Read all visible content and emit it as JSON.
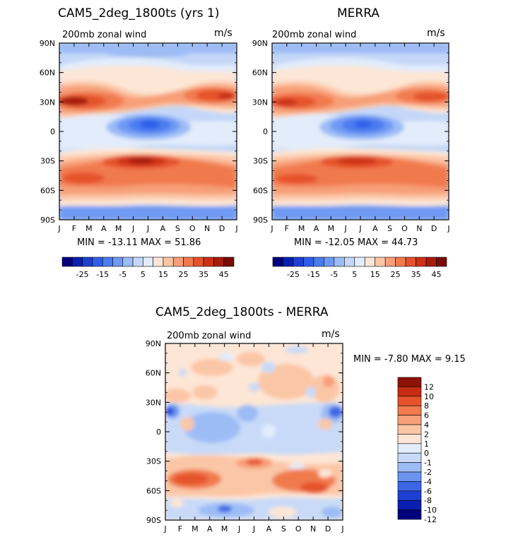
{
  "chart_data": [
    {
      "type": "heatmap",
      "title": "CAM5_2deg_1800ts (yrs 1)",
      "subtitle": "200mb zonal wind",
      "units": "m/s",
      "x_ticks": [
        "J",
        "F",
        "M",
        "A",
        "M",
        "J",
        "J",
        "A",
        "S",
        "O",
        "N",
        "D",
        "J"
      ],
      "y_ticks": [
        "90N",
        "60N",
        "30N",
        "0",
        "30S",
        "60S",
        "90S"
      ],
      "stats": "MIN = -13.11 MAX =  51.86",
      "colorbar_labels": [
        "-25",
        "-15",
        "-5",
        "5",
        "15",
        "25",
        "35",
        "45"
      ],
      "ylim": [
        -90,
        90
      ]
    },
    {
      "type": "heatmap",
      "title": "MERRA",
      "subtitle": "200mb zonal wind",
      "units": "m/s",
      "x_ticks": [
        "J",
        "F",
        "M",
        "A",
        "M",
        "J",
        "J",
        "A",
        "S",
        "O",
        "N",
        "D",
        "J"
      ],
      "y_ticks": [
        "90N",
        "60N",
        "30N",
        "0",
        "30S",
        "60S",
        "90S"
      ],
      "stats": "MIN = -12.05 MAX =  44.73",
      "colorbar_labels": [
        "-25",
        "-15",
        "-5",
        "5",
        "15",
        "25",
        "35",
        "45"
      ],
      "ylim": [
        -90,
        90
      ]
    },
    {
      "type": "heatmap",
      "title": "CAM5_2deg_1800ts - MERRA",
      "subtitle": "200mb zonal wind",
      "units": "m/s",
      "x_ticks": [
        "J",
        "F",
        "M",
        "A",
        "M",
        "J",
        "J",
        "A",
        "S",
        "O",
        "N",
        "D",
        "J"
      ],
      "y_ticks": [
        "90N",
        "60N",
        "30N",
        "0",
        "30S",
        "60S",
        "90S"
      ],
      "stats": "MIN =  -7.80 MAX =   9.15",
      "colorbar_labels": [
        "12",
        "10",
        "8",
        "6",
        "4",
        "2",
        "1",
        "0",
        "-1",
        "-2",
        "-4",
        "-6",
        "-8",
        "-10",
        "-12"
      ],
      "ylim": [
        -90,
        90
      ]
    }
  ],
  "palettes": {
    "full": [
      "#00007f",
      "#0a1fb0",
      "#1f3fd0",
      "#2f5fe8",
      "#4a7cf0",
      "#7099f3",
      "#9cbcf6",
      "#c4d7f8",
      "#e2ecfb",
      "#fde6d6",
      "#fbc6a6",
      "#f79f78",
      "#f17a4e",
      "#e5532c",
      "#cc3016",
      "#a61c0a",
      "#7a0a05"
    ],
    "diff": [
      "#00007f",
      "#0a1fb0",
      "#1f3fd0",
      "#3c66e6",
      "#6a94f0",
      "#9cbcf6",
      "#c8daf8",
      "#e2ecfb",
      "#fde6d6",
      "#fbc6a6",
      "#f7a07a",
      "#f17a4e",
      "#e5532c",
      "#c52c12",
      "#8f1206"
    ]
  }
}
